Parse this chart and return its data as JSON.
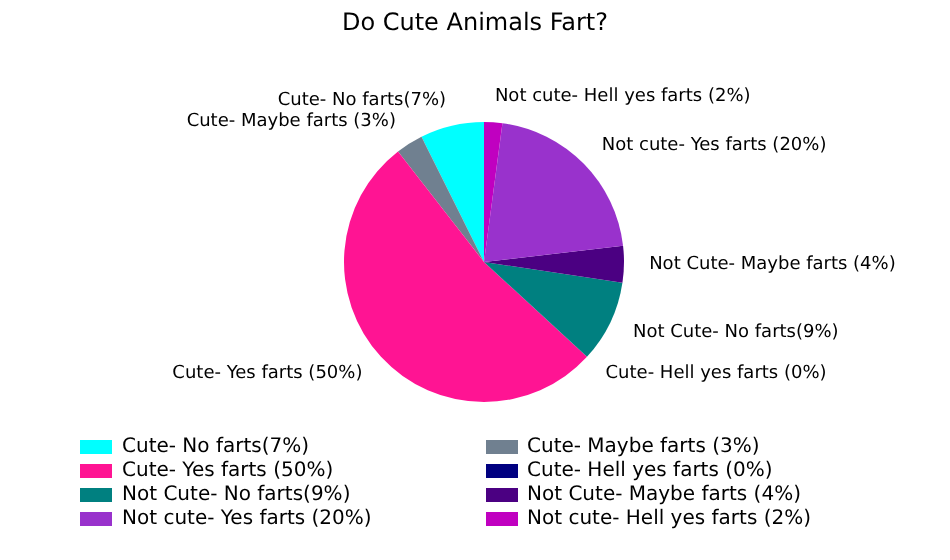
{
  "chart_data": {
    "type": "pie",
    "title": "Do Cute Animals Fart?",
    "categories": [
      "Cute- No farts(7%)",
      "Cute- Maybe farts (3%)",
      "Cute- Yes farts (50%)",
      "Cute- Hell yes farts (0%)",
      "Not Cute- No farts(9%)",
      "Not Cute- Maybe farts (4%)",
      "Not cute- Yes farts (20%)",
      "Not cute- Hell yes farts (2%)"
    ],
    "values": [
      7,
      3,
      50,
      0,
      9,
      4,
      20,
      2
    ],
    "colors": [
      "#00ffff",
      "#708090",
      "#ff1493",
      "#000080",
      "#008080",
      "#4b0082",
      "#9932cc",
      "#c000c0"
    ],
    "legend": "bottom"
  }
}
